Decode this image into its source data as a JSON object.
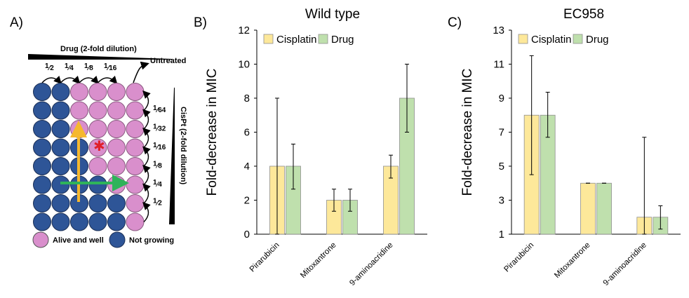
{
  "panels": {
    "a": {
      "label": "A)",
      "drug_label": "Drug (2-fold dilution)",
      "untreated_label": "Untreated",
      "cispt_label": "CisPt (2-fold dilution)",
      "col_fractions": [
        {
          "num": "1",
          "den": "2"
        },
        {
          "num": "1",
          "den": "4"
        },
        {
          "num": "1",
          "den": "8"
        },
        {
          "num": "1",
          "den": "16"
        }
      ],
      "row_fractions": [
        {
          "num": "1",
          "den": "64"
        },
        {
          "num": "1",
          "den": "32"
        },
        {
          "num": "1",
          "den": "16"
        },
        {
          "num": "1",
          "den": "8"
        },
        {
          "num": "1",
          "den": "4"
        },
        {
          "num": "1",
          "den": "2"
        }
      ],
      "legend": {
        "alive": "Alive and well",
        "dead": "Not growing"
      },
      "colors": {
        "alive": "#d98fcc",
        "dead": "#2e5597",
        "arrow_v": "#f5b82e",
        "arrow_h": "#2fb35a",
        "star": "#e0202a"
      },
      "grid": [
        [
          "dead",
          "dead",
          "alive",
          "alive",
          "alive",
          "alive"
        ],
        [
          "dead",
          "dead",
          "alive",
          "alive",
          "alive",
          "alive"
        ],
        [
          "dead",
          "dead",
          "alive",
          "alive",
          "alive",
          "alive"
        ],
        [
          "dead",
          "dead",
          "dead",
          "alive",
          "alive",
          "alive"
        ],
        [
          "dead",
          "dead",
          "dead",
          "alive",
          "alive",
          "alive"
        ],
        [
          "dead",
          "dead",
          "dead",
          "dead",
          "alive",
          "alive"
        ],
        [
          "dead",
          "dead",
          "dead",
          "dead",
          "dead",
          "alive"
        ],
        [
          "dead",
          "dead",
          "dead",
          "dead",
          "dead",
          "alive"
        ]
      ]
    },
    "b": {
      "label": "B)"
    },
    "c": {
      "label": "C)"
    }
  },
  "chart_data": [
    {
      "type": "bar",
      "title": "Wild type",
      "ylabel": "Fold-decrease in MIC",
      "xlabel": "",
      "ylim": [
        0,
        12
      ],
      "yticks": [
        "0",
        "2",
        "4",
        "6",
        "8",
        "10",
        "12"
      ],
      "categories": [
        "Pirarubicin",
        "Mitoxantrone",
        "9-aminoacridine"
      ],
      "series": [
        {
          "name": "Cisplatin",
          "color": "#fde89a",
          "values": [
            4,
            2,
            4
          ],
          "err_low": [
            0,
            1.35,
            3.3
          ],
          "err_high": [
            8,
            2.65,
            4.65
          ]
        },
        {
          "name": "Drug",
          "color": "#bfe0ad",
          "values": [
            4,
            2,
            8
          ],
          "err_low": [
            2.65,
            1.35,
            6
          ],
          "err_high": [
            5.3,
            2.65,
            10
          ]
        }
      ],
      "legend_position": "top-left",
      "grid": false
    },
    {
      "type": "bar",
      "title": "EC958",
      "ylabel": "Fold-decrease in MIC",
      "xlabel": "",
      "ylim": [
        1,
        13
      ],
      "yticks": [
        "1",
        "3",
        "5",
        "7",
        "9",
        "11",
        "13"
      ],
      "categories": [
        "Pirarubicin",
        "Mitoxantrone",
        "9-aminoacridine"
      ],
      "series": [
        {
          "name": "Cisplatin",
          "color": "#fde89a",
          "values": [
            8,
            4,
            2
          ],
          "err_low": [
            4.5,
            4,
            1
          ],
          "err_high": [
            11.5,
            4,
            6.7
          ]
        },
        {
          "name": "Drug",
          "color": "#bfe0ad",
          "values": [
            8,
            4,
            2
          ],
          "err_low": [
            6.7,
            4,
            1.3
          ],
          "err_high": [
            9.35,
            4,
            2.67
          ]
        }
      ],
      "legend_position": "top-left",
      "grid": false
    }
  ]
}
